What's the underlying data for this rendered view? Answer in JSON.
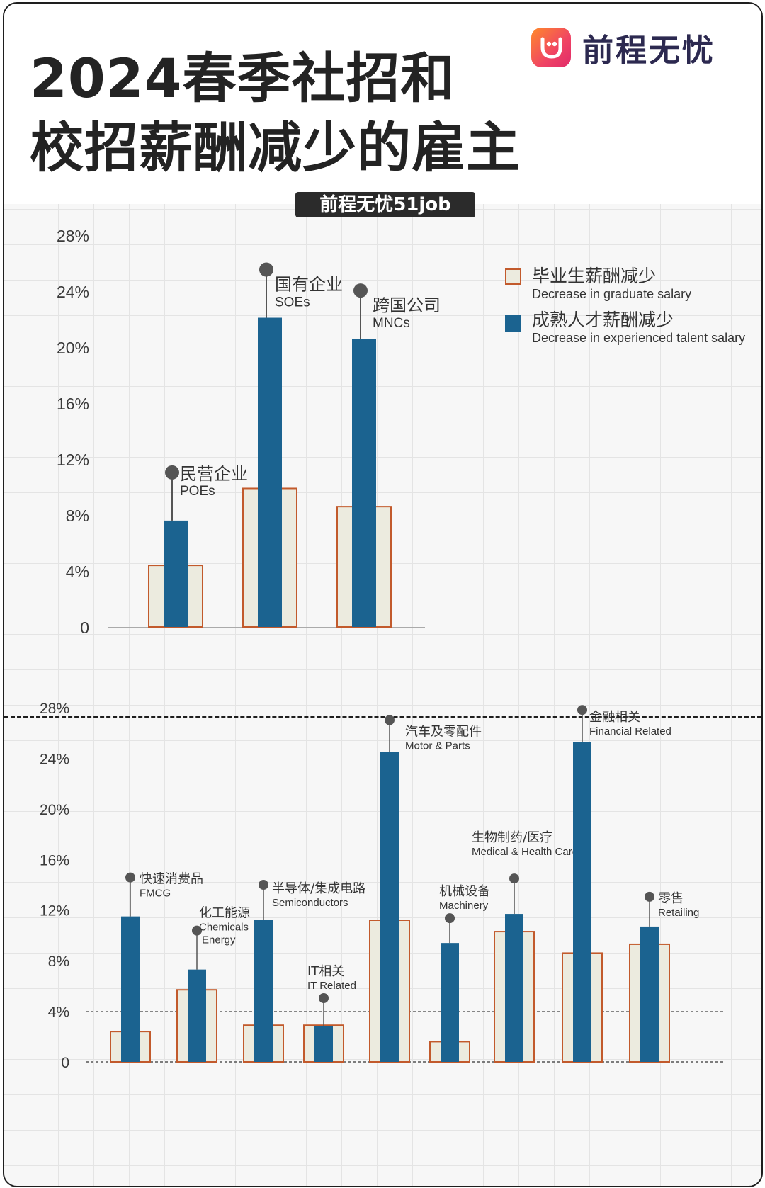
{
  "header": {
    "title_line1": "2024春季社招和",
    "title_line2": "校招薪酬减少的雇主",
    "brand_name": "前程无忧",
    "source_tag": "前程无忧51job"
  },
  "colors": {
    "graduate_fill": "#ecebdf",
    "graduate_stroke": "#c25a2c",
    "experienced_fill": "#1b6390",
    "marker": "#555555"
  },
  "chart_data": [
    {
      "type": "bar",
      "ylim": [
        0,
        28
      ],
      "yticks": [
        "0",
        "4%",
        "8%",
        "12%",
        "16%",
        "20%",
        "24%",
        "28%"
      ],
      "legend": [
        {
          "cn": "毕业生薪酬减少",
          "en": "Decrease in graduate salary"
        },
        {
          "cn": "成熟人才薪酬减少",
          "en": "Decrease in experienced talent salary"
        }
      ],
      "legend_position": "top-right",
      "categories": [
        {
          "cn": "民营企业",
          "en": "POEs"
        },
        {
          "cn": "国有企业",
          "en": "SOEs"
        },
        {
          "cn": "跨国公司",
          "en": "MNCs"
        }
      ],
      "series": [
        {
          "name": "毕业生薪酬减少",
          "values": [
            4.4,
            9.9,
            8.6
          ]
        },
        {
          "name": "成熟人才薪酬减少",
          "values": [
            7.6,
            22.1,
            20.6
          ]
        }
      ]
    },
    {
      "type": "bar",
      "ylim": [
        0,
        28
      ],
      "yticks": [
        "0",
        "4%",
        "8%",
        "12%",
        "16%",
        "20%",
        "24%",
        "28%"
      ],
      "categories": [
        {
          "cn": "快速消费品",
          "en": "FMCG"
        },
        {
          "cn": "化工能源",
          "en": "Chemicals Energy"
        },
        {
          "cn": "半导体/集成电路",
          "en": "Semiconductors"
        },
        {
          "cn": "IT相关",
          "en": "IT Related"
        },
        {
          "cn": "汽车及零配件",
          "en": "Motor & Parts"
        },
        {
          "cn": "机械设备",
          "en": "Machinery"
        },
        {
          "cn": "生物制药/医疗",
          "en": "Medical & Health Care"
        },
        {
          "cn": "金融相关",
          "en": "Financial Related"
        },
        {
          "cn": "零售",
          "en": "Retailing"
        }
      ],
      "series": [
        {
          "name": "毕业生薪酬减少",
          "values": [
            2.4,
            5.7,
            2.9,
            2.9,
            11.2,
            1.6,
            10.3,
            8.6,
            9.3
          ]
        },
        {
          "name": "成熟人才薪酬减少",
          "values": [
            11.5,
            7.3,
            11.2,
            2.8,
            24.5,
            9.4,
            11.7,
            25.3,
            10.7
          ]
        }
      ]
    }
  ]
}
